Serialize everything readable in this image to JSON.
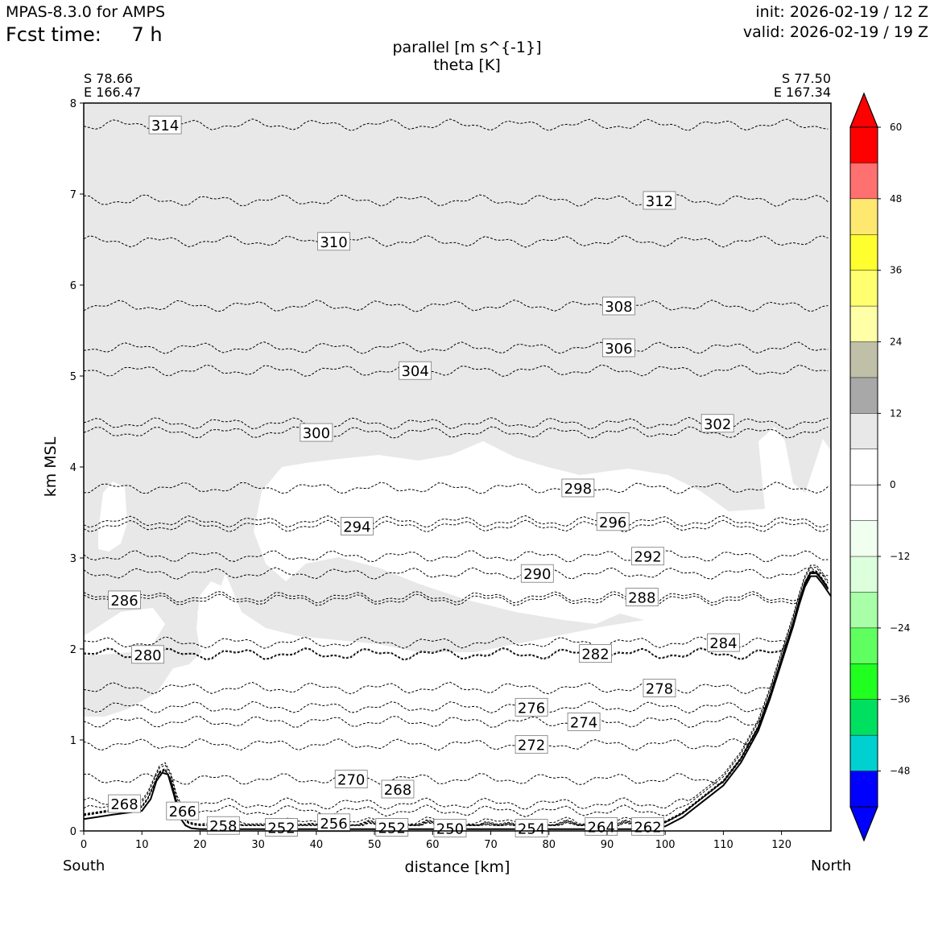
{
  "header": {
    "model": "MPAS-8.3.0 for AMPS",
    "fcst_label": "Fcst time:",
    "fcst_value": "7 h",
    "init": "init: 2026-02-19 / 12 Z",
    "valid": "valid: 2026-02-19 / 19 Z"
  },
  "endpoints": {
    "left_lat": "S 78.66",
    "left_lon": "E 166.47",
    "right_lat": "S 77.50",
    "right_lon": "E 167.34",
    "left_name": "South",
    "right_name": "North"
  },
  "chart_data": {
    "type": "contour",
    "title": "parallel [m s^{-1}]",
    "subtitle": "theta [K]",
    "xlabel": "distance [km]",
    "ylabel": "km MSL",
    "xlim": [
      0,
      128.5
    ],
    "ylim": [
      0,
      8
    ],
    "xticks": [
      0,
      10,
      20,
      30,
      40,
      50,
      60,
      70,
      80,
      90,
      100,
      110,
      120
    ],
    "yticks": [
      0,
      1,
      2,
      3,
      4,
      5,
      6,
      7,
      8
    ],
    "colorbar": {
      "ticks": [
        "60",
        "48",
        "36",
        "24",
        "12",
        "0",
        "−12",
        "−24",
        "−36",
        "−48"
      ],
      "colors": [
        "#ff0000",
        "#ff7070",
        "#ffe870",
        "#ffff30",
        "#ffff70",
        "#ffffa8",
        "#c0c0a8",
        "#a8a8a8",
        "#e8e8e8",
        "#ffffff",
        "#ffffff",
        "#f0fff0",
        "#dcffdc",
        "#a8ffa8",
        "#60ff60",
        "#20ff20",
        "#00e060",
        "#00d0d0",
        "#0000ff"
      ],
      "extend_top_color": "#ff0000",
      "extend_bottom_color": "#0000ff"
    },
    "shading": {
      "color": "#e8e8e8",
      "description": "parallel wind 6-12 m/s region"
    },
    "terrain": {
      "x": [
        0,
        5,
        10,
        11.5,
        12.5,
        13.5,
        14.5,
        15.5,
        16.5,
        17.5,
        18.5,
        20,
        30,
        40,
        60,
        80,
        95,
        100,
        103,
        106,
        110,
        113,
        116,
        118,
        120,
        122,
        123,
        124,
        125,
        126,
        127,
        128.5
      ],
      "y": [
        0.13,
        0.18,
        0.22,
        0.35,
        0.55,
        0.64,
        0.62,
        0.4,
        0.15,
        0.06,
        0.03,
        0.02,
        0.02,
        0.02,
        0.02,
        0.02,
        0.02,
        0.05,
        0.15,
        0.3,
        0.5,
        0.75,
        1.1,
        1.45,
        1.85,
        2.25,
        2.48,
        2.68,
        2.8,
        2.8,
        2.72,
        2.58
      ]
    },
    "theta_contours": [
      {
        "label": "314",
        "x": 14,
        "y": 7.76
      },
      {
        "label": "312",
        "x": 99,
        "y": 6.93
      },
      {
        "label": "310",
        "x": 43,
        "y": 6.48
      },
      {
        "label": "308",
        "x": 92,
        "y": 5.77
      },
      {
        "label": "306",
        "x": 92,
        "y": 5.31
      },
      {
        "label": "304",
        "x": 57,
        "y": 5.06
      },
      {
        "label": "302",
        "x": 109,
        "y": 4.48
      },
      {
        "label": "300",
        "x": 40,
        "y": 4.38
      },
      {
        "label": "298",
        "x": 85,
        "y": 3.77
      },
      {
        "label": "296",
        "x": 91,
        "y": 3.4
      },
      {
        "label": "294",
        "x": 47,
        "y": 3.35
      },
      {
        "label": "292",
        "x": 97,
        "y": 3.02
      },
      {
        "label": "290",
        "x": 78,
        "y": 2.83
      },
      {
        "label": "288",
        "x": 96,
        "y": 2.57
      },
      {
        "label": "286",
        "x": 7,
        "y": 2.54
      },
      {
        "label": "284",
        "x": 110,
        "y": 2.07
      },
      {
        "label": "282",
        "x": 88,
        "y": 1.95
      },
      {
        "label": "280",
        "x": 11,
        "y": 1.94
      },
      {
        "label": "278",
        "x": 99,
        "y": 1.57
      },
      {
        "label": "276",
        "x": 77,
        "y": 1.36
      },
      {
        "label": "274",
        "x": 86,
        "y": 1.2
      },
      {
        "label": "272",
        "x": 77,
        "y": 0.95
      },
      {
        "label": "270",
        "x": 46,
        "y": 0.57
      },
      {
        "label": "268",
        "x": 7,
        "y": 0.3
      },
      {
        "label": "268",
        "x": 54,
        "y": 0.46
      },
      {
        "label": "266",
        "x": 17,
        "y": 0.22
      },
      {
        "label": "264",
        "x": 89,
        "y": 0.05
      },
      {
        "label": "262",
        "x": 97,
        "y": 0.05
      },
      {
        "label": "258",
        "x": 24,
        "y": 0.06
      },
      {
        "label": "256",
        "x": 43,
        "y": 0.09
      },
      {
        "label": "254",
        "x": 77,
        "y": 0.03
      },
      {
        "label": "252",
        "x": 34,
        "y": 0.04
      },
      {
        "label": "252",
        "x": 53,
        "y": 0.04
      },
      {
        "label": "250",
        "x": 63,
        "y": 0.03
      }
    ]
  }
}
